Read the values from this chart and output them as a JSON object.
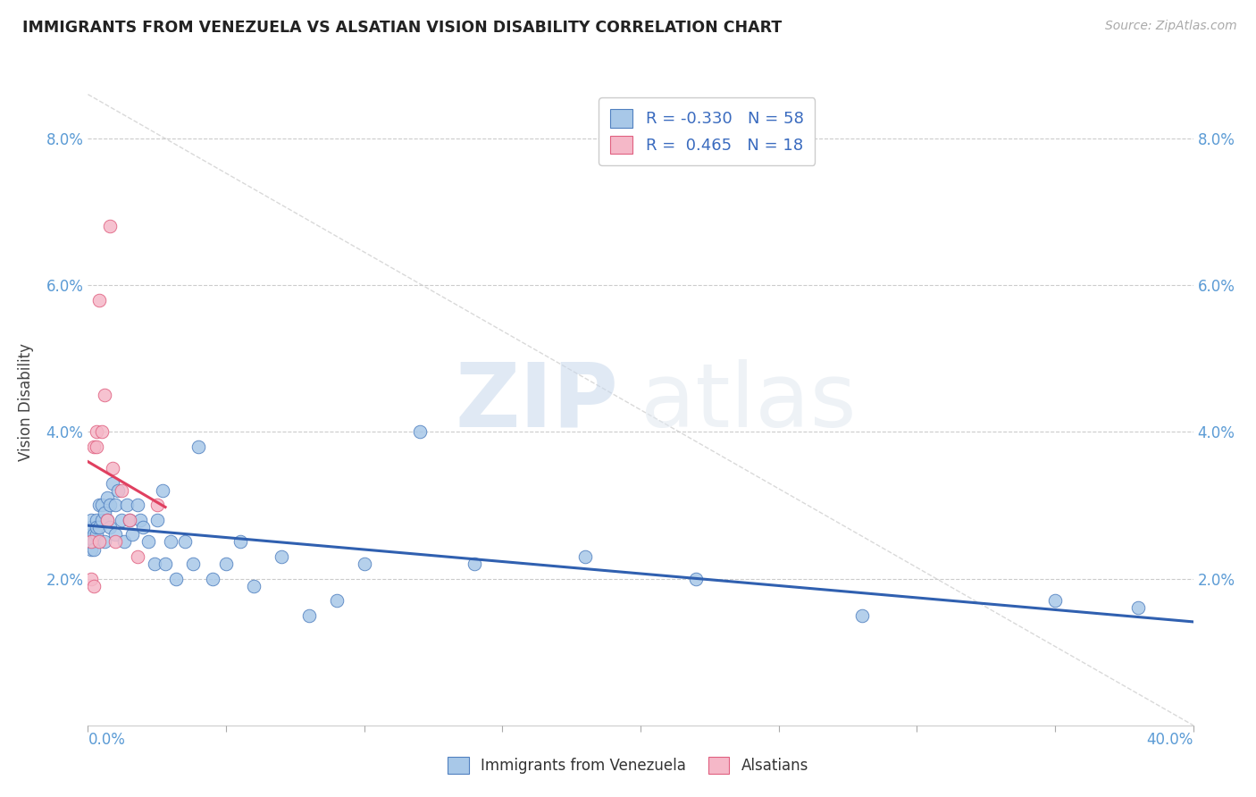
{
  "title": "IMMIGRANTS FROM VENEZUELA VS ALSATIAN VISION DISABILITY CORRELATION CHART",
  "source": "Source: ZipAtlas.com",
  "ylabel": "Vision Disability",
  "xlim": [
    0.0,
    0.4
  ],
  "ylim": [
    0.0,
    0.088
  ],
  "yticks": [
    0.02,
    0.04,
    0.06,
    0.08
  ],
  "ytick_labels": [
    "2.0%",
    "4.0%",
    "6.0%",
    "8.0%"
  ],
  "xtick_left_label": "0.0%",
  "xtick_right_label": "40.0%",
  "blue_R": "-0.330",
  "blue_N": "58",
  "pink_R": "0.465",
  "pink_N": "18",
  "blue_color": "#a8c8e8",
  "pink_color": "#f5b8c8",
  "blue_edge_color": "#5080c0",
  "pink_edge_color": "#e06080",
  "blue_line_color": "#3060b0",
  "pink_line_color": "#e04060",
  "diagonal_color": "#d0d0d0",
  "watermark_zip": "ZIP",
  "watermark_atlas": "atlas",
  "blue_scatter_x": [
    0.001,
    0.001,
    0.001,
    0.001,
    0.001,
    0.002,
    0.002,
    0.002,
    0.003,
    0.003,
    0.003,
    0.004,
    0.004,
    0.005,
    0.005,
    0.006,
    0.006,
    0.007,
    0.007,
    0.008,
    0.008,
    0.009,
    0.01,
    0.01,
    0.011,
    0.012,
    0.013,
    0.014,
    0.015,
    0.016,
    0.018,
    0.019,
    0.02,
    0.022,
    0.024,
    0.025,
    0.027,
    0.028,
    0.03,
    0.032,
    0.035,
    0.038,
    0.04,
    0.045,
    0.05,
    0.055,
    0.06,
    0.07,
    0.08,
    0.09,
    0.1,
    0.12,
    0.14,
    0.18,
    0.22,
    0.28,
    0.35,
    0.38
  ],
  "blue_scatter_y": [
    0.026,
    0.027,
    0.028,
    0.025,
    0.024,
    0.026,
    0.025,
    0.024,
    0.028,
    0.026,
    0.027,
    0.03,
    0.027,
    0.028,
    0.03,
    0.029,
    0.025,
    0.031,
    0.028,
    0.03,
    0.027,
    0.033,
    0.03,
    0.026,
    0.032,
    0.028,
    0.025,
    0.03,
    0.028,
    0.026,
    0.03,
    0.028,
    0.027,
    0.025,
    0.022,
    0.028,
    0.032,
    0.022,
    0.025,
    0.02,
    0.025,
    0.022,
    0.038,
    0.02,
    0.022,
    0.025,
    0.019,
    0.023,
    0.015,
    0.017,
    0.022,
    0.04,
    0.022,
    0.023,
    0.02,
    0.015,
    0.017,
    0.016
  ],
  "pink_scatter_x": [
    0.001,
    0.001,
    0.002,
    0.002,
    0.003,
    0.003,
    0.004,
    0.004,
    0.005,
    0.006,
    0.007,
    0.008,
    0.009,
    0.01,
    0.012,
    0.015,
    0.018,
    0.025
  ],
  "pink_scatter_y": [
    0.025,
    0.02,
    0.038,
    0.019,
    0.04,
    0.038,
    0.058,
    0.025,
    0.04,
    0.045,
    0.028,
    0.068,
    0.035,
    0.025,
    0.032,
    0.028,
    0.023,
    0.03
  ]
}
